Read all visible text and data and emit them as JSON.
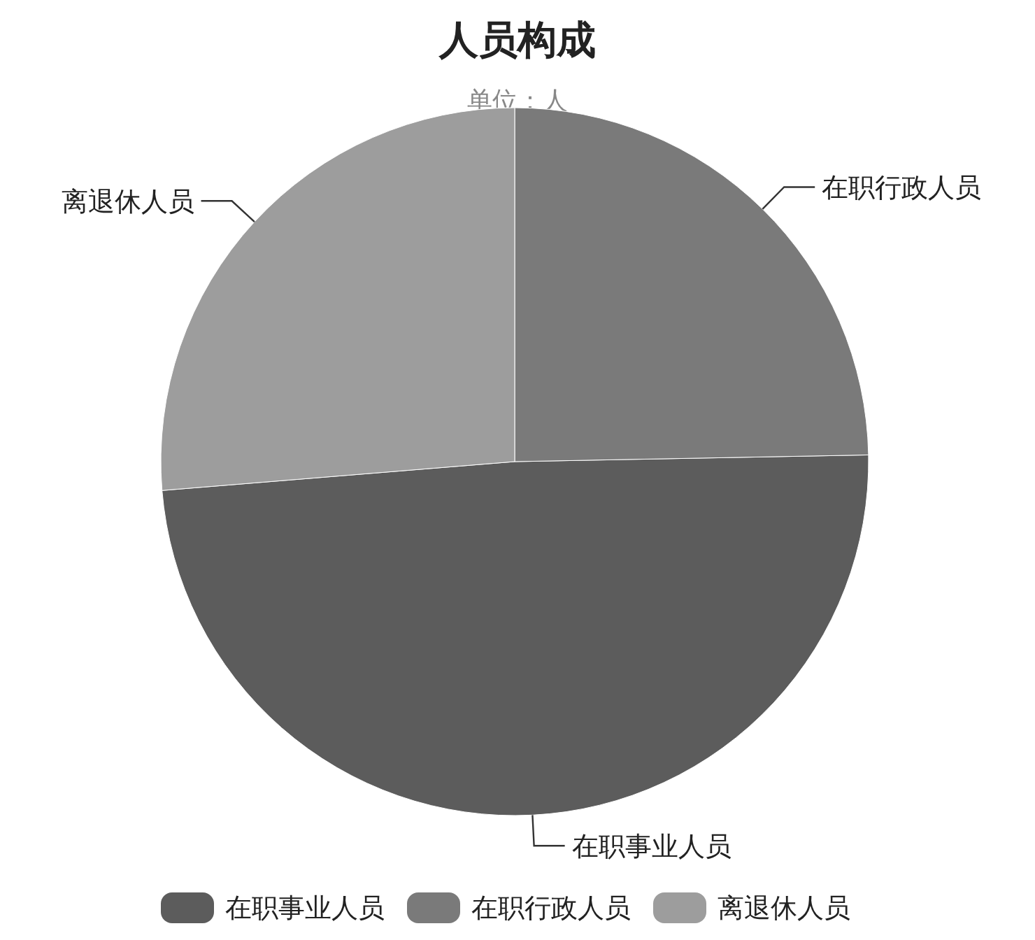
{
  "chart_data": {
    "type": "pie",
    "title": "人员构成",
    "subtitle": "单位：人",
    "categories": [
      "在职事业人员",
      "在职行政人员",
      "离退休人员"
    ],
    "values": [
      49.0,
      24.7,
      26.3
    ],
    "colors": [
      "#5c5c5c",
      "#7a7a7a",
      "#9d9d9d"
    ],
    "legend": "bottom"
  }
}
